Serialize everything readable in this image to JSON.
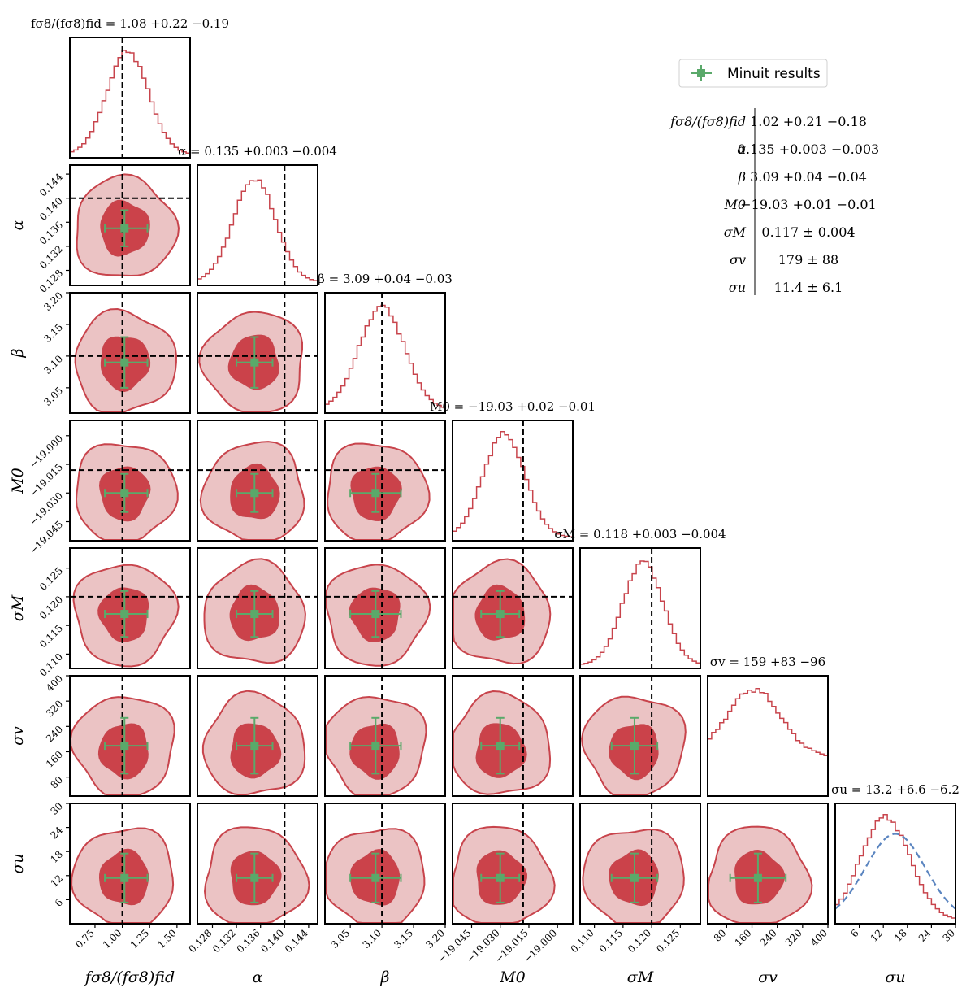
{
  "chart_data": {
    "type": "corner",
    "parameters": [
      {
        "label": "fσ8/(fσ8)fid",
        "ticks": [
          "0.75",
          "1.00",
          "1.25",
          "1.50"
        ],
        "tick_values": [
          0.75,
          1.0,
          1.25,
          1.5
        ],
        "range": [
          0.52,
          1.62
        ],
        "truth": 1.0,
        "minuit": 1.02,
        "minuit_err": [
          0.18,
          0.21
        ],
        "hist_peak": 1.05,
        "hist_sigma": 0.19,
        "title": "fσ8/(fσ8)fid = 1.08 +0.22 −0.19"
      },
      {
        "label": "α",
        "ticks": [
          "0.128",
          "0.132",
          "0.136",
          "0.140",
          "0.144"
        ],
        "tick_values": [
          0.128,
          0.132,
          0.136,
          0.14,
          0.144
        ],
        "range": [
          0.1255,
          0.1455
        ],
        "truth": 0.14,
        "minuit": 0.135,
        "minuit_err": [
          0.003,
          0.003
        ],
        "hist_peak": 0.135,
        "hist_sigma": 0.0035,
        "title": "α = 0.135 +0.003 −0.004"
      },
      {
        "label": "β",
        "ticks": [
          "3.05",
          "3.10",
          "3.15",
          "3.20"
        ],
        "tick_values": [
          3.05,
          3.1,
          3.15,
          3.2
        ],
        "range": [
          3.01,
          3.2
        ],
        "truth": 3.1,
        "minuit": 3.09,
        "minuit_err": [
          0.04,
          0.04
        ],
        "hist_peak": 3.1,
        "hist_sigma": 0.036,
        "title": "β = 3.09 +0.04 −0.03"
      },
      {
        "label": "M0",
        "ticks": [
          "−19.045",
          "−19.030",
          "−19.015",
          "−19.000"
        ],
        "tick_values": [
          -19.045,
          -19.03,
          -19.015,
          -19.0
        ],
        "range": [
          -19.055,
          -18.992
        ],
        "truth": -19.018,
        "minuit": -19.03,
        "minuit_err": [
          0.01,
          0.01
        ],
        "hist_peak": -19.028,
        "hist_sigma": 0.011,
        "title": "M0 = −19.03 +0.02 −0.01"
      },
      {
        "label": "σM",
        "ticks": [
          "0.110",
          "0.115",
          "0.120",
          "0.125"
        ],
        "tick_values": [
          0.11,
          0.115,
          0.12,
          0.125
        ],
        "range": [
          0.1075,
          0.1285
        ],
        "truth": 0.12,
        "minuit": 0.117,
        "minuit_err": [
          0.004,
          0.004
        ],
        "hist_peak": 0.1185,
        "hist_sigma": 0.0035,
        "title": "σM = 0.118 +0.003 −0.004"
      },
      {
        "label": "σv",
        "ticks": [
          "80",
          "160",
          "240",
          "320",
          "400"
        ],
        "tick_values": [
          80,
          160,
          240,
          320,
          400
        ],
        "range": [
          20,
          400
        ],
        "truth": null,
        "minuit": 179,
        "minuit_err": [
          88,
          88
        ],
        "hist_peak": 165,
        "hist_sigma": 85,
        "title": "σv = 159 +83 −96"
      },
      {
        "label": "σu",
        "ticks": [
          "6",
          "12",
          "18",
          "24",
          "30"
        ],
        "tick_values": [
          6,
          12,
          18,
          24,
          30
        ],
        "range": [
          0,
          30
        ],
        "truth": null,
        "minuit": 11.4,
        "minuit_err": [
          6.1,
          6.1
        ],
        "hist_peak": 12.5,
        "hist_sigma": 6.2,
        "title": "σu = 13.2 +6.6 −6.2"
      }
    ],
    "colors": {
      "contour_fill_outer": "#ebc3c4",
      "contour_fill_inner": "#cb424a",
      "contour_edge": "#c8444c",
      "hist": "#c8444c",
      "minuit": "#5aa96a",
      "prior": "#5b85c0",
      "truth": "#000000"
    },
    "legend": {
      "label": "Minuit results",
      "placement": "top-right"
    },
    "minuit_table": [
      {
        "param": "fσ8/(fσ8)fid",
        "value": "1.02 +0.21 −0.18"
      },
      {
        "param": "α",
        "value": "0.135 +0.003 −0.003"
      },
      {
        "param": "β",
        "value": "3.09 +0.04 −0.04"
      },
      {
        "param": "M0",
        "value": "−19.03 +0.01 −0.01"
      },
      {
        "param": "σM",
        "value": "0.117 ± 0.004"
      },
      {
        "param": "σv",
        "value": "179 ± 88"
      },
      {
        "param": "σu",
        "value": "11.4 ± 6.1"
      }
    ]
  }
}
